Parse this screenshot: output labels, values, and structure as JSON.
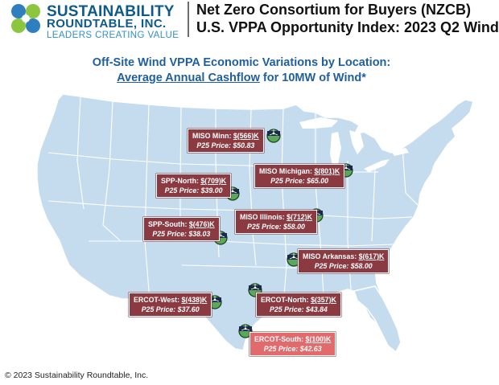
{
  "header": {
    "logo_line1": "SUSTAINABILITY",
    "logo_line2": "ROUNDTABLE, INC.",
    "logo_tagline": "LEADERS CREATING VALUE",
    "title_line1": "Net Zero Consortium for Buyers (NZCB)",
    "title_line2": "U.S. VPPA Opportunity Index: 2023 Q2 Wind"
  },
  "subtitle": {
    "line1": "Off-Site Wind VPPA Economic Variations by Location:",
    "line2_underlined": "Average Annual Cashflow",
    "line2_rest": " for 10MW of Wind*"
  },
  "locations": [
    {
      "name": "MISO Minn:",
      "cashflow": "$(566)K",
      "price": "P25 Price: $50.83",
      "style": "dark"
    },
    {
      "name": "MISO Michigan:",
      "cashflow": "$(801)K",
      "price": "P25 Price: $65.00",
      "style": "dark"
    },
    {
      "name": "SPP-North:",
      "cashflow": "$(709)K",
      "price": "P25 Price: $39.00",
      "style": "dark"
    },
    {
      "name": "MISO Illinois:",
      "cashflow": "$(712)K",
      "price": "P25 Price: $58.00",
      "style": "dark"
    },
    {
      "name": "SPP-South:",
      "cashflow": "$(476)K",
      "price": "P25 Price: $38.03",
      "style": "dark"
    },
    {
      "name": "MISO Arkansas:",
      "cashflow": "$(617)K",
      "price": "P25 Price: $58.00",
      "style": "dark"
    },
    {
      "name": "ERCOT-West:",
      "cashflow": "$(438)K",
      "price": "P25 Price: $37.60",
      "style": "dark"
    },
    {
      "name": "ERCOT-North:",
      "cashflow": "$(357)K",
      "price": "P25 Price: $43.84",
      "style": "dark"
    },
    {
      "name": "ERCOT-South:",
      "cashflow": "$(100)K",
      "price": "P25 Price: $42.63",
      "style": "light"
    }
  ],
  "colors": {
    "map_fill": "#c5dcef",
    "map_border": "#ffffff",
    "callout_dark": "#8b3a42",
    "callout_light": "#e06a6c",
    "title_blue": "#1f5f9e"
  },
  "footer": {
    "copyright": "© 2023 Sustainability Roundtable, Inc."
  }
}
